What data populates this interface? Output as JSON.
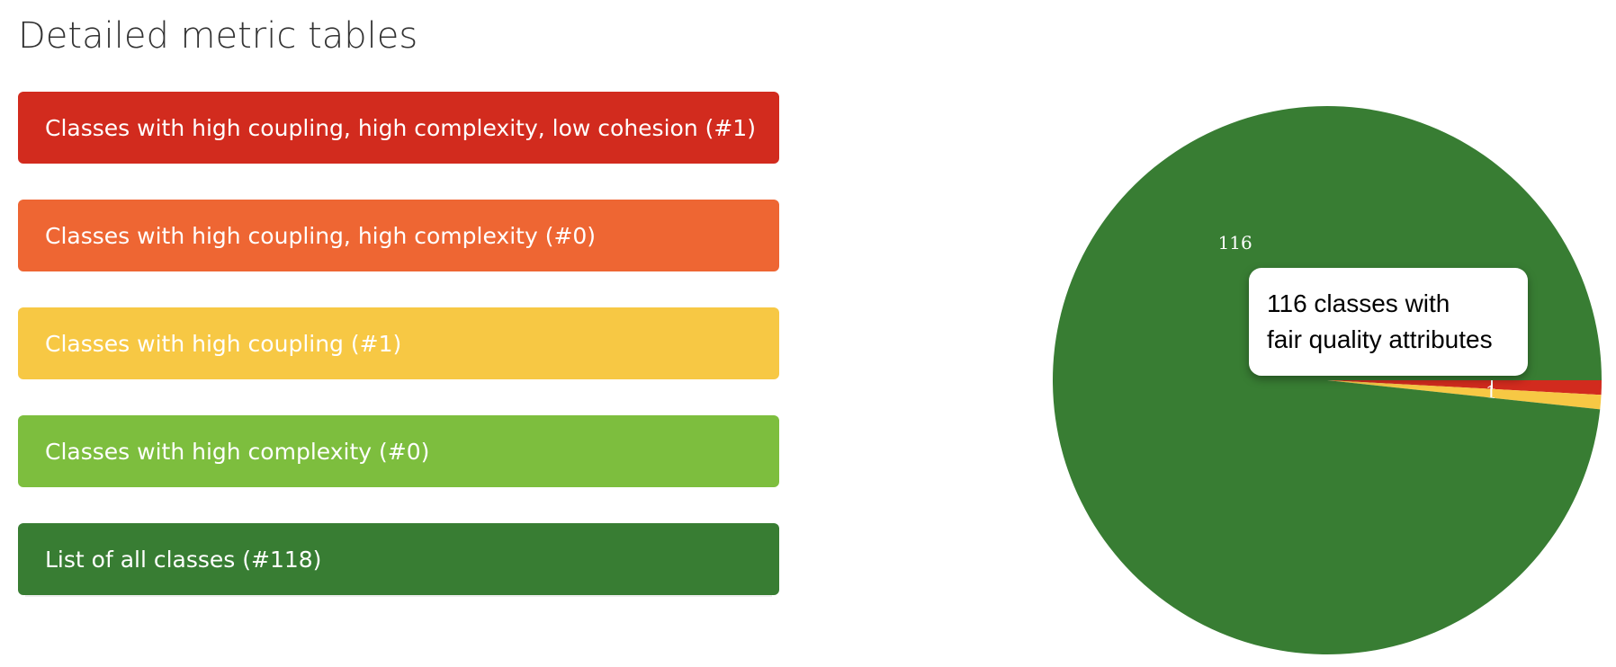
{
  "page": {
    "title": "Detailed metric tables"
  },
  "metric_tables": [
    {
      "label": "Classes with high coupling, high complexity, low cohesion (#1)",
      "color": "#d22b1e"
    },
    {
      "label": "Classes with high coupling, high complexity (#0)",
      "color": "#ee6633"
    },
    {
      "label": "Classes with high coupling (#1)",
      "color": "#f7c844"
    },
    {
      "label": "Classes with high complexity (#0)",
      "color": "#7dbe3e"
    },
    {
      "label": "List of all classes (#118)",
      "color": "#387d33"
    }
  ],
  "tooltip": {
    "line1": "116 classes with",
    "line2": "fair quality attributes"
  },
  "chart_data": {
    "type": "pie",
    "slices": [
      {
        "label": "116",
        "value": 116,
        "color": "#387d33"
      },
      {
        "label": "1",
        "value": 1,
        "color": "#d22b1e"
      },
      {
        "label": "1",
        "value": 1,
        "color": "#f7c844"
      }
    ]
  }
}
